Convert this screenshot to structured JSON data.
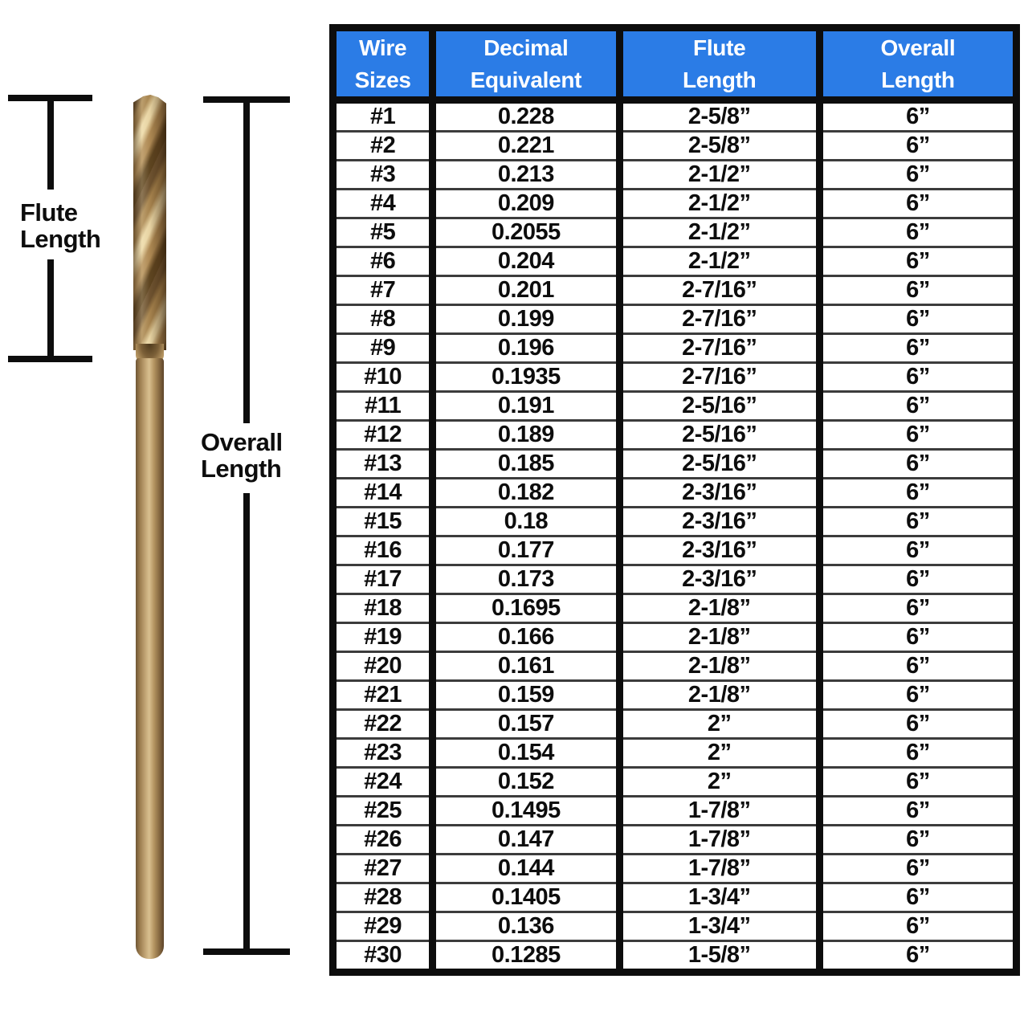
{
  "figure": {
    "flute_label": "Flute Length",
    "overall_label": "Overall Length"
  },
  "colors": {
    "header_bg": "#2b7ce6",
    "header_text": "#ffffff",
    "table_border": "#0d0d0d",
    "row_divider": "#3c3c3c",
    "line_color": "#0d0d0d",
    "drill_gold_light": "#ecd9a8",
    "drill_gold_mid": "#b2925f",
    "drill_gold_dark": "#5c431f"
  },
  "chart_data": {
    "type": "table",
    "columns": [
      [
        "Wire",
        "Sizes"
      ],
      [
        "Decimal",
        "Equivalent"
      ],
      [
        "Flute",
        "Length"
      ],
      [
        "Overall",
        "Length"
      ]
    ],
    "rows": [
      [
        "#1",
        "0.228",
        "2-5/8”",
        "6”"
      ],
      [
        "#2",
        "0.221",
        "2-5/8”",
        "6”"
      ],
      [
        "#3",
        "0.213",
        "2-1/2”",
        "6”"
      ],
      [
        "#4",
        "0.209",
        "2-1/2”",
        "6”"
      ],
      [
        "#5",
        "0.2055",
        "2-1/2”",
        "6”"
      ],
      [
        "#6",
        "0.204",
        "2-1/2”",
        "6”"
      ],
      [
        "#7",
        "0.201",
        "2-7/16”",
        "6”"
      ],
      [
        "#8",
        "0.199",
        "2-7/16”",
        "6”"
      ],
      [
        "#9",
        "0.196",
        "2-7/16”",
        "6”"
      ],
      [
        "#10",
        "0.1935",
        "2-7/16”",
        "6”"
      ],
      [
        "#11",
        "0.191",
        "2-5/16”",
        "6”"
      ],
      [
        "#12",
        "0.189",
        "2-5/16”",
        "6”"
      ],
      [
        "#13",
        "0.185",
        "2-5/16”",
        "6”"
      ],
      [
        "#14",
        "0.182",
        "2-3/16”",
        "6”"
      ],
      [
        "#15",
        "0.18",
        "2-3/16”",
        "6”"
      ],
      [
        "#16",
        "0.177",
        "2-3/16”",
        "6”"
      ],
      [
        "#17",
        "0.173",
        "2-3/16”",
        "6”"
      ],
      [
        "#18",
        "0.1695",
        "2-1/8”",
        "6”"
      ],
      [
        "#19",
        "0.166",
        "2-1/8”",
        "6”"
      ],
      [
        "#20",
        "0.161",
        "2-1/8”",
        "6”"
      ],
      [
        "#21",
        "0.159",
        "2-1/8”",
        "6”"
      ],
      [
        "#22",
        "0.157",
        "2”",
        "6”"
      ],
      [
        "#23",
        "0.154",
        "2”",
        "6”"
      ],
      [
        "#24",
        "0.152",
        "2”",
        "6”"
      ],
      [
        "#25",
        "0.1495",
        "1-7/8”",
        "6”"
      ],
      [
        "#26",
        "0.147",
        "1-7/8”",
        "6”"
      ],
      [
        "#27",
        "0.144",
        "1-7/8”",
        "6”"
      ],
      [
        "#28",
        "0.1405",
        "1-3/4”",
        "6”"
      ],
      [
        "#29",
        "0.136",
        "1-3/4”",
        "6”"
      ],
      [
        "#30",
        "0.1285",
        "1-5/8”",
        "6”"
      ]
    ]
  }
}
